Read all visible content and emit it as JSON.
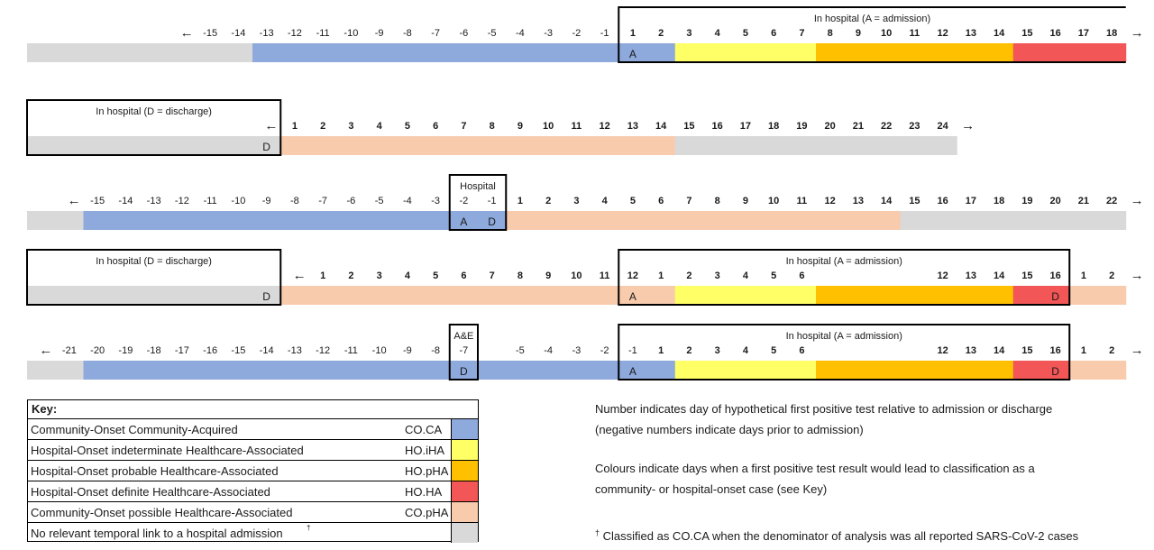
{
  "colors": {
    "COCA": "#8EA9DB",
    "HOiHA": "#FFFF66",
    "HOpHA": "#FFC000",
    "HOHA": "#F25656",
    "COpHA": "#F8CBAD",
    "none": "#D9D9D9"
  },
  "arrows": {
    "left": "←",
    "right": "→"
  },
  "rows": [
    {
      "id": "row1",
      "ticks": [
        "-15",
        "-14",
        "-13",
        "-12",
        "-11",
        "-10",
        "-9",
        "-8",
        "-7",
        "-6",
        "-5",
        "-4",
        "-3",
        "-2",
        "-1",
        "1",
        "2",
        "3",
        "4",
        "5",
        "6",
        "7",
        "8",
        "9",
        "10",
        "11",
        "12",
        "13",
        "14",
        "15",
        "16",
        "17",
        "18"
      ],
      "segments": [
        {
          "n": 8,
          "c": "none"
        },
        {
          "n": 13,
          "c": "COCA"
        },
        {
          "n": 2,
          "c": "COCA"
        },
        {
          "n": 5,
          "c": "HOiHA"
        },
        {
          "n": 7,
          "c": "HOpHA"
        },
        {
          "n": 4,
          "c": "HOHA"
        }
      ],
      "markers": [
        {
          "text": "A",
          "slot": 21
        }
      ],
      "boxes": [
        {
          "from": 21,
          "to": 39,
          "label": "In hospital (A = admission)",
          "open_right": true
        }
      ]
    },
    {
      "id": "row2",
      "ticks": [
        "1",
        "2",
        "3",
        "4",
        "5",
        "6",
        "7",
        "8",
        "9",
        "10",
        "11",
        "12",
        "13",
        "14",
        "15",
        "16",
        "17",
        "18",
        "19",
        "20",
        "21",
        "22",
        "23",
        "24"
      ],
      "segments": [
        {
          "n": 9,
          "c": "none"
        },
        {
          "n": 14,
          "c": "COpHA"
        },
        {
          "n": 10,
          "c": "none"
        }
      ],
      "markers": [
        {
          "text": "D",
          "slot": 8
        }
      ],
      "boxes": [
        {
          "from": 0,
          "to": 9,
          "label": "In hospital (D = discharge)",
          "open_right": false
        }
      ]
    },
    {
      "id": "row3",
      "ticks": [
        "-15",
        "-14",
        "-13",
        "-12",
        "-11",
        "-10",
        "-9",
        "-8",
        "-7",
        "-6",
        "-5",
        "-4",
        "-3",
        "-2",
        "-1",
        "1",
        "2",
        "3",
        "4",
        "5",
        "6",
        "7",
        "8",
        "9",
        "10",
        "11",
        "12",
        "13",
        "14",
        "15",
        "16",
        "17",
        "18",
        "19",
        "20",
        "21",
        "22"
      ],
      "segments": [
        {
          "n": 2,
          "c": "none"
        },
        {
          "n": 13,
          "c": "COCA"
        },
        {
          "n": 2,
          "c": "COCA"
        },
        {
          "n": 14,
          "c": "COpHA"
        },
        {
          "n": 8,
          "c": "none"
        }
      ],
      "markers": [
        {
          "text": "A",
          "slot": 15
        },
        {
          "text": "D",
          "slot": 16
        }
      ],
      "boxes": [
        {
          "from": 15,
          "to": 17,
          "label": "Hospital",
          "open_right": false
        }
      ]
    },
    {
      "id": "row4",
      "ticks": [
        "1",
        "2",
        "3",
        "4",
        "5",
        "6",
        "7",
        "8",
        "9",
        "10",
        "11",
        "12",
        "1",
        "2",
        "3",
        "4",
        "5",
        "6",
        "",
        "",
        "",
        "",
        "12",
        "13",
        "14",
        "15",
        "16",
        "1",
        "2"
      ],
      "segments": [
        {
          "n": 9,
          "c": "none"
        },
        {
          "n": 12,
          "c": "COpHA"
        },
        {
          "n": 2,
          "c": "COpHA"
        },
        {
          "n": 5,
          "c": "HOiHA"
        },
        {
          "n": 7,
          "c": "HOpHA"
        },
        {
          "n": 2,
          "c": "HOHA"
        },
        {
          "n": 2,
          "c": "COpHA"
        }
      ],
      "markers": [
        {
          "text": "D",
          "slot": 8
        },
        {
          "text": "A",
          "slot": 21
        },
        {
          "text": "D",
          "slot": 36
        }
      ],
      "boxes": [
        {
          "from": 0,
          "to": 9,
          "label": "In hospital (D = discharge)",
          "open_right": false
        },
        {
          "from": 21,
          "to": 37,
          "label": "In hospital (A = admission)",
          "open_right": false
        }
      ]
    },
    {
      "id": "row5",
      "ticks": [
        "-21",
        "-20",
        "-19",
        "-18",
        "-17",
        "-16",
        "-15",
        "-14",
        "-13",
        "-12",
        "-11",
        "-10",
        "-9",
        "-8",
        "-7",
        "",
        "-5",
        "-4",
        "-3",
        "-2",
        "-1",
        "1",
        "2",
        "3",
        "4",
        "5",
        "6",
        "",
        "",
        "",
        "",
        "12",
        "13",
        "14",
        "15",
        "16",
        "1",
        "2"
      ],
      "segments": [
        {
          "n": 2,
          "c": "none"
        },
        {
          "n": 19,
          "c": "COCA"
        },
        {
          "n": 2,
          "c": "COCA"
        },
        {
          "n": 5,
          "c": "HOiHA"
        },
        {
          "n": 7,
          "c": "HOpHA"
        },
        {
          "n": 2,
          "c": "HOHA"
        },
        {
          "n": 2,
          "c": "COpHA"
        }
      ],
      "markers": [
        {
          "text": "D",
          "slot": 15
        },
        {
          "text": "A",
          "slot": 21
        },
        {
          "text": "D",
          "slot": 36
        }
      ],
      "boxes": [
        {
          "from": 15,
          "to": 16,
          "label": "A&E",
          "open_right": false
        },
        {
          "from": 21,
          "to": 37,
          "label": "In hospital (A = admission)",
          "open_right": false
        }
      ]
    }
  ],
  "key": {
    "title": "Key:",
    "items": [
      {
        "label": "Community-Onset Community-Acquired",
        "abbr": "CO.CA",
        "c": "COCA"
      },
      {
        "label": "Hospital-Onset indeterminate Healthcare-Associated",
        "abbr": "HO.iHA",
        "c": "HOiHA"
      },
      {
        "label": "Hospital-Onset probable Healthcare-Associated",
        "abbr": "HO.pHA",
        "c": "HOpHA"
      },
      {
        "label": "Hospital-Onset definite Healthcare-Associated",
        "abbr": "HO.HA",
        "c": "HOHA"
      },
      {
        "label": "Community-Onset possible Healthcare-Associated",
        "abbr": "CO.pHA",
        "c": "COpHA"
      },
      {
        "label": "No relevant temporal link to a hospital admission",
        "sup": "†",
        "abbr": "",
        "c": "none"
      }
    ]
  },
  "notes": {
    "line1": "Number indicates day of hypothetical first positive test relative to admission or discharge",
    "line2": "(negative numbers indicate days prior to admission)",
    "line3": "Colours indicate days when a first positive test result would lead to classification as a",
    "line4": "community- or hospital-onset case (see Key)",
    "dagger": "†",
    "line5": " Classified as CO.CA when the denominator of analysis was all reported SARS-CoV-2 cases"
  }
}
